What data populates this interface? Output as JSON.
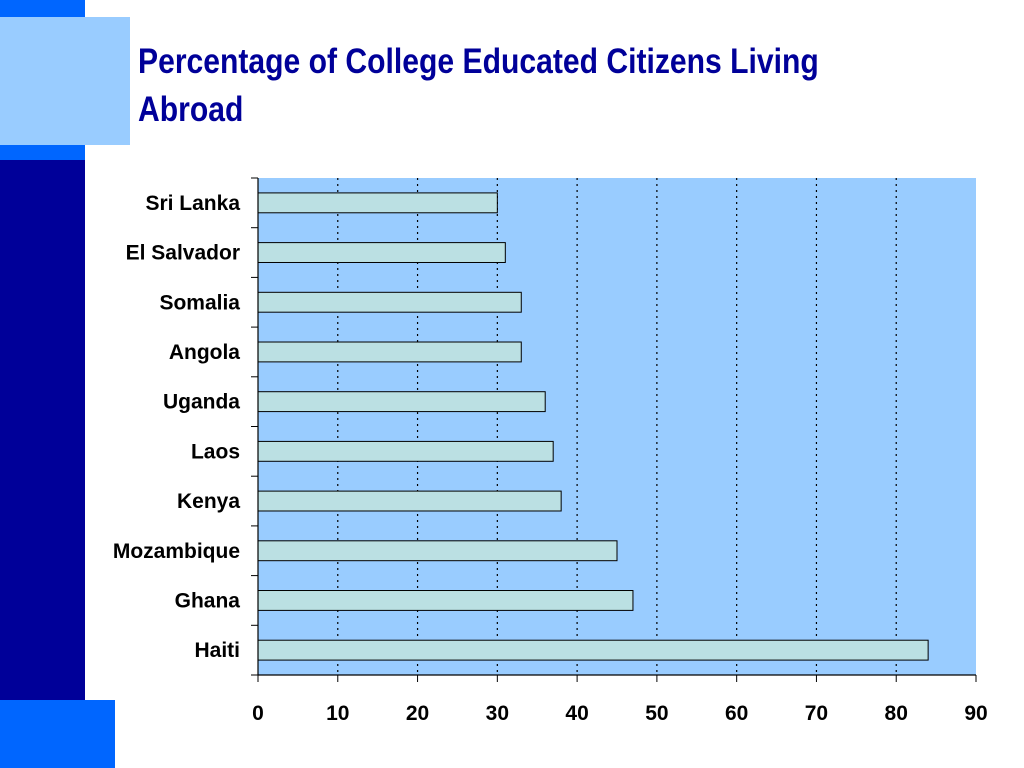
{
  "colors": {
    "decor_blue": "#0066ff",
    "decor_light": "#99ccff",
    "decor_navy": "#000099",
    "title_color": "#000099",
    "plot_bg": "#99ccff",
    "bar_fill": "#bbe0e3",
    "bar_stroke": "#000000"
  },
  "slide": {
    "title": "Percentage of College Educated Citizens Living Abroad"
  },
  "chart_data": {
    "type": "bar",
    "orientation": "horizontal",
    "title": "",
    "xlabel": "",
    "ylabel": "",
    "categories": [
      "Sri Lanka",
      "El Salvador",
      "Somalia",
      "Angola",
      "Uganda",
      "Laos",
      "Kenya",
      "Mozambique",
      "Ghana",
      "Haiti"
    ],
    "values": [
      30,
      31,
      33,
      33,
      36,
      37,
      38,
      45,
      47,
      84
    ],
    "xlim": [
      0,
      90
    ],
    "xticks": [
      0,
      10,
      20,
      30,
      40,
      50,
      60,
      70,
      80,
      90
    ],
    "gridlines": "vertical-dotted",
    "legend": "none"
  }
}
